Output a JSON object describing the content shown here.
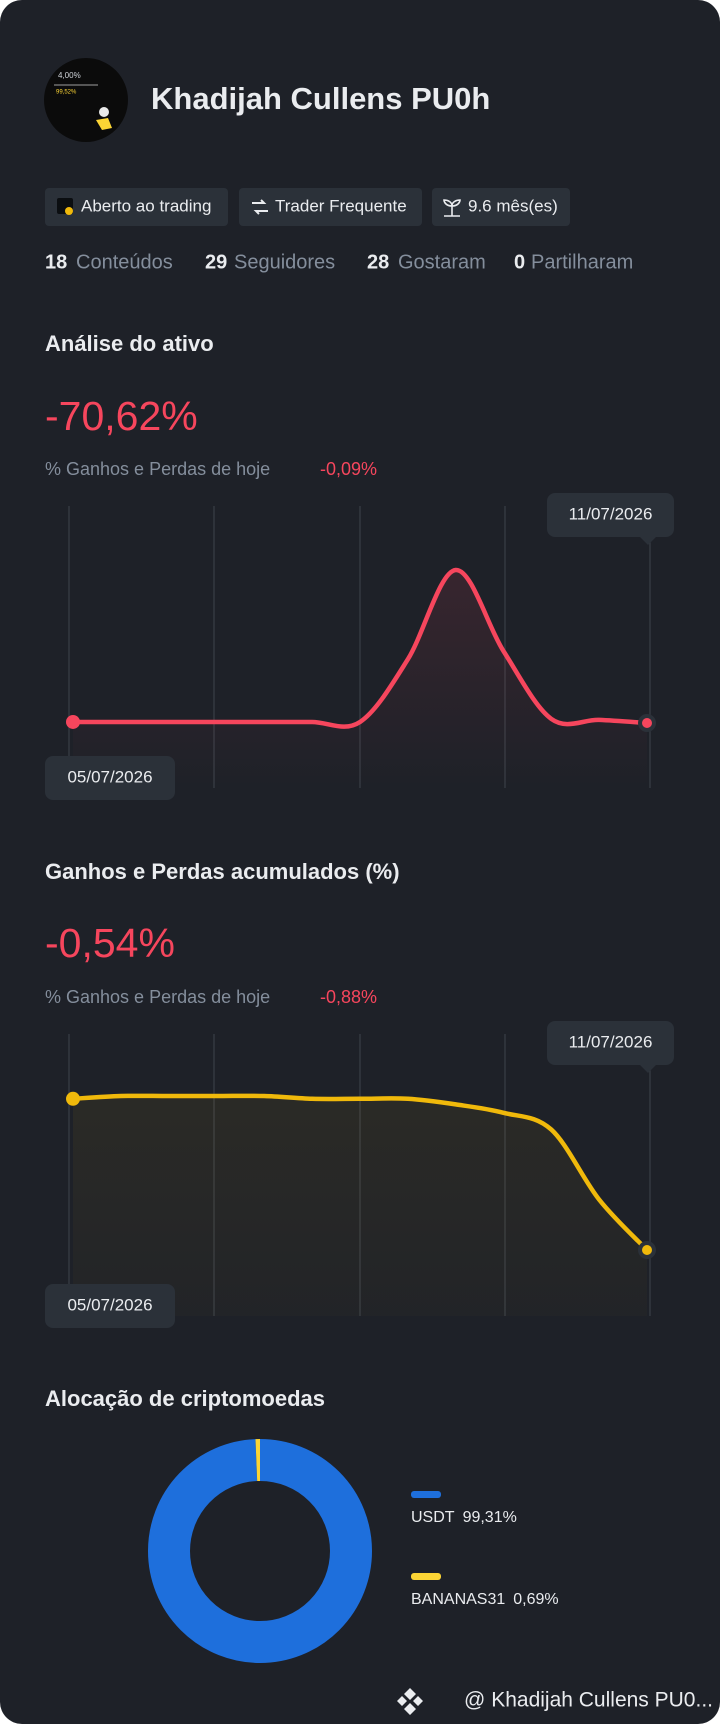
{
  "profile": {
    "name": "Khadijah Cullens PU0h",
    "badges": [
      "Aberto ao trading",
      "Trader Frequente",
      "9.6 mês(es)"
    ],
    "stats": [
      {
        "count": 18,
        "label": "Conteúdos"
      },
      {
        "count": 29,
        "label": "Seguidores"
      },
      {
        "count": 28,
        "label": "Gostaram"
      },
      {
        "count": 0,
        "label": "Partilharam"
      }
    ]
  },
  "asset_analysis": {
    "title": "Análise do ativo",
    "value": "-70,62%",
    "today_label": "% Ganhos e Perdas de hoje",
    "today_value": "-0,09%",
    "chart": {
      "type": "line",
      "color": "#f6465d",
      "start_date": "05/07/2026",
      "end_date": "11/07/2026",
      "values": [
        -70.5,
        -70.5,
        -70.5,
        -70.5,
        -70.5,
        -70.5,
        -70.5,
        -64.4,
        -55.7,
        -63.6,
        -70.2,
        -70.3,
        -70.6
      ]
    }
  },
  "cumulative_pnl": {
    "title": "Ganhos e Perdas acumulados (%)",
    "value": "-0,54%",
    "today_label": "% Ganhos e Perdas de hoje",
    "today_value": "-0,88%",
    "chart": {
      "type": "line",
      "color": "#f0b90b",
      "start_date": "05/07/2026",
      "end_date": "11/07/2026",
      "values": [
        0,
        0.01,
        0.01,
        0.01,
        0.01,
        0,
        0,
        0,
        -0.02,
        -0.05,
        -0.11,
        -0.36,
        -0.54
      ]
    }
  },
  "allocation": {
    "title": "Alocação de criptomoedas",
    "chart": {
      "type": "pie",
      "categories": [
        "USDT",
        "BANANAS31"
      ],
      "values": [
        99.31,
        0.69
      ],
      "value_labels": [
        "99,31%",
        "0,69%"
      ],
      "colors": [
        "#1e6fdc",
        "#fcd535"
      ]
    }
  },
  "footer": {
    "handle": "@ Khadijah Cullens PU0..."
  }
}
